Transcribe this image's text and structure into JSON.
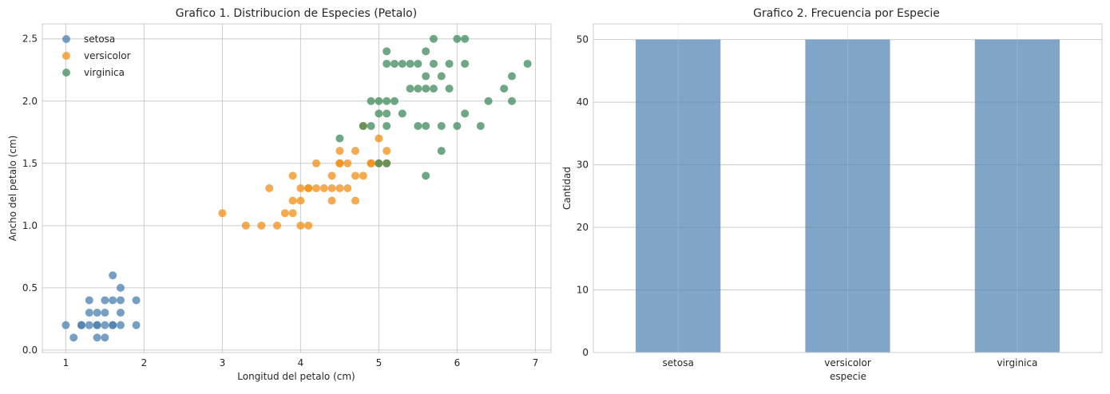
{
  "chart_data": [
    {
      "type": "scatter",
      "title": "Grafico 1. Distribucion de Especies (Petalo)",
      "xlabel": "Longitud del petalo (cm)",
      "ylabel": "Ancho del petalo (cm)",
      "xlim": [
        0.7,
        7.2
      ],
      "ylim": [
        -0.02,
        2.62
      ],
      "xticks": [
        1,
        2,
        3,
        4,
        5,
        6,
        7
      ],
      "yticks": [
        0.0,
        0.5,
        1.0,
        1.5,
        2.0,
        2.5
      ],
      "xtick_labels": [
        "1",
        "2",
        "3",
        "4",
        "5",
        "6",
        "7"
      ],
      "ytick_labels": [
        "0.0",
        "0.5",
        "1.0",
        "1.5",
        "2.0",
        "2.5"
      ],
      "grid": true,
      "legend_position": "top-left",
      "series": [
        {
          "name": "setosa",
          "color": "#4a7fb0",
          "x": [
            1.0,
            1.1,
            1.2,
            1.2,
            1.3,
            1.3,
            1.3,
            1.4,
            1.4,
            1.4,
            1.4,
            1.5,
            1.5,
            1.5,
            1.5,
            1.6,
            1.6,
            1.6,
            1.6,
            1.7,
            1.7,
            1.7,
            1.7,
            1.9,
            1.9
          ],
          "y": [
            0.2,
            0.1,
            0.2,
            0.2,
            0.2,
            0.3,
            0.4,
            0.1,
            0.2,
            0.3,
            0.2,
            0.1,
            0.2,
            0.3,
            0.4,
            0.2,
            0.4,
            0.6,
            0.2,
            0.2,
            0.3,
            0.4,
            0.5,
            0.2,
            0.4
          ]
        },
        {
          "name": "versicolor",
          "color": "#f28e16",
          "x": [
            3.0,
            3.3,
            3.5,
            3.6,
            3.7,
            3.8,
            3.9,
            3.9,
            3.9,
            4.0,
            4.0,
            4.0,
            4.1,
            4.1,
            4.1,
            4.2,
            4.2,
            4.3,
            4.4,
            4.4,
            4.4,
            4.5,
            4.5,
            4.5,
            4.5,
            4.6,
            4.6,
            4.7,
            4.7,
            4.7,
            4.8,
            4.8,
            4.9,
            4.9,
            5.0,
            5.0,
            5.1,
            5.1
          ],
          "y": [
            1.1,
            1.0,
            1.0,
            1.3,
            1.0,
            1.1,
            1.1,
            1.2,
            1.4,
            1.0,
            1.2,
            1.3,
            1.0,
            1.3,
            1.3,
            1.3,
            1.5,
            1.3,
            1.2,
            1.3,
            1.4,
            1.3,
            1.5,
            1.6,
            1.5,
            1.3,
            1.5,
            1.2,
            1.4,
            1.6,
            1.4,
            1.8,
            1.5,
            1.5,
            1.7,
            1.5,
            1.6,
            1.5
          ]
        },
        {
          "name": "virginica",
          "color": "#3d8a5a",
          "x": [
            4.5,
            4.8,
            4.9,
            4.9,
            5.0,
            5.0,
            5.0,
            5.1,
            5.1,
            5.1,
            5.1,
            5.1,
            5.1,
            5.2,
            5.2,
            5.3,
            5.3,
            5.4,
            5.4,
            5.5,
            5.5,
            5.5,
            5.6,
            5.6,
            5.6,
            5.6,
            5.6,
            5.7,
            5.7,
            5.7,
            5.8,
            5.8,
            5.8,
            5.9,
            5.9,
            6.0,
            6.0,
            6.1,
            6.1,
            6.1,
            6.3,
            6.4,
            6.6,
            6.7,
            6.7,
            6.9
          ],
          "y": [
            1.7,
            1.8,
            1.8,
            2.0,
            1.5,
            2.0,
            1.9,
            1.5,
            1.8,
            1.9,
            2.0,
            2.3,
            2.4,
            2.0,
            2.3,
            1.9,
            2.3,
            2.1,
            2.3,
            1.8,
            2.1,
            2.3,
            1.4,
            1.8,
            2.2,
            2.4,
            2.1,
            2.1,
            2.3,
            2.5,
            1.6,
            1.8,
            2.2,
            2.1,
            2.3,
            1.8,
            2.5,
            1.9,
            2.3,
            2.5,
            1.8,
            2.0,
            2.1,
            2.0,
            2.2,
            2.3
          ]
        }
      ]
    },
    {
      "type": "bar",
      "title": "Grafico 2. Frecuencia por Especie",
      "xlabel": "especie",
      "ylabel": "Cantidad",
      "categories": [
        "setosa",
        "versicolor",
        "virginica"
      ],
      "values": [
        50,
        50,
        50
      ],
      "ylim": [
        0,
        52.5
      ],
      "yticks": [
        0,
        10,
        20,
        30,
        40,
        50
      ],
      "ytick_labels": [
        "0",
        "10",
        "20",
        "30",
        "40",
        "50"
      ],
      "color": "#4a7fb0",
      "grid": true
    }
  ]
}
